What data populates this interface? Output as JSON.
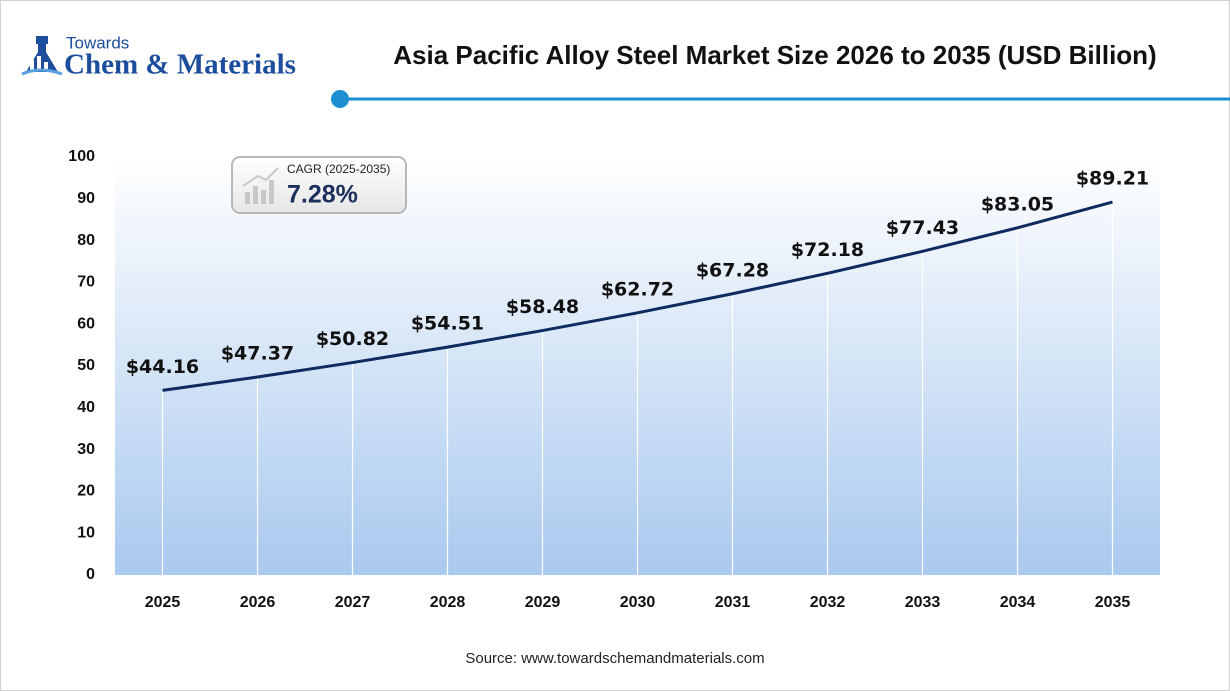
{
  "brand": {
    "small": "Towards",
    "large": "Chem & Materials"
  },
  "chart_data": {
    "type": "line",
    "title": "Asia Pacific Alloy Steel Market Size 2026 to 2035 (USD Billion)",
    "categories": [
      "2025",
      "2026",
      "2027",
      "2028",
      "2029",
      "2030",
      "2031",
      "2032",
      "2033",
      "2034",
      "2035"
    ],
    "values": [
      44.16,
      47.37,
      50.82,
      54.51,
      58.48,
      62.72,
      67.28,
      72.18,
      77.43,
      83.05,
      89.21
    ],
    "value_labels": [
      "$44.16",
      "$47.37",
      "$50.82",
      "$54.51",
      "$58.48",
      "$62.72",
      "$67.28",
      "$72.18",
      "$77.43",
      "$83.05",
      "$89.21"
    ],
    "color": "#0f2a5e",
    "ylim": [
      0,
      100
    ],
    "yticks": [
      0,
      10,
      20,
      30,
      40,
      50,
      60,
      70,
      80,
      90,
      100
    ],
    "annotation": {
      "label": "CAGR (2025-2035)",
      "value": "7.28%"
    },
    "source": "Source: www.towardschemandmaterials.com"
  }
}
